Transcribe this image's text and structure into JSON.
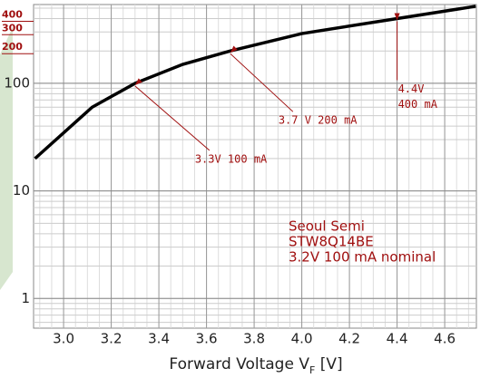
{
  "chart_data": {
    "type": "line",
    "x": [
      2.88,
      3.12,
      3.3,
      3.5,
      3.7,
      4.0,
      4.4,
      4.73
    ],
    "series": [
      {
        "color": "#000000",
        "values": [
          20,
          60,
          100,
          150,
          200,
          290,
          400,
          520
        ]
      }
    ],
    "xlim": [
      2.874,
      4.733
    ],
    "ylim": [
      0.53,
      540
    ],
    "log_y": true,
    "grid": true,
    "xticks": [
      {
        "value": 3,
        "label": "3.0"
      },
      3.2,
      3.4,
      3.6,
      3.8,
      {
        "value": 4,
        "label": "4.0"
      },
      4.2,
      4.4,
      4.6
    ],
    "yticks": [
      1,
      10,
      100
    ],
    "red_yticks": [
      200,
      300,
      400
    ],
    "xlabel": {
      "text": "Forward Voltage V",
      "sub": "F",
      "suffix": " [V]"
    },
    "annotations": [
      {
        "lines": [
          "3.3V 100 mA"
        ],
        "x": 3.3,
        "y": 100
      },
      {
        "lines": [
          "3.7 V 200 mA"
        ],
        "x": 3.7,
        "y": 200
      },
      {
        "lines": [
          "4.4V",
          "400 mA"
        ],
        "x": 4.4,
        "y": 400
      }
    ],
    "note": [
      "Seoul Semi",
      "STW8Q14BE",
      "3.2V 100 mA nominal"
    ]
  }
}
